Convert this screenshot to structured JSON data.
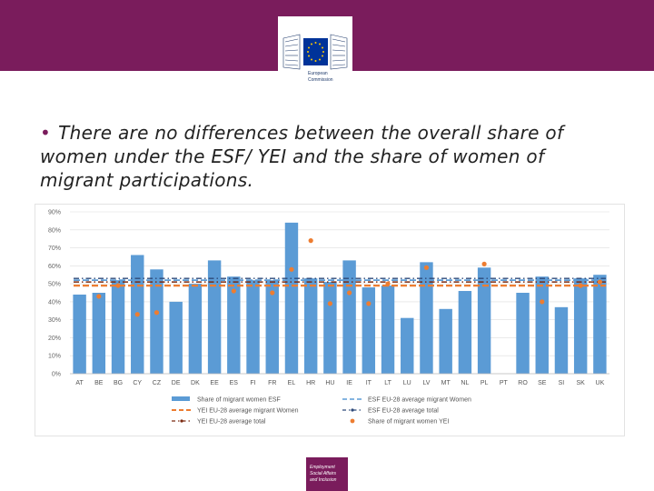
{
  "header": {
    "org_line1": "European",
    "org_line2": "Commission"
  },
  "slide": {
    "bullet": "•",
    "title": "There are no differences between the overall share of women under the ESF/ YEI and the share of women of migrant participations."
  },
  "footer": {
    "line1": "Employment",
    "line2": "Social Affairs",
    "line3": "and Inclusion"
  },
  "colors": {
    "banner": "#7a1c5c",
    "bar": "#5b9bd5",
    "orange": "#ed7d31",
    "dark_blue": "#2e4a7a",
    "dark_red": "#7b2a12"
  },
  "chart_data": {
    "type": "bar",
    "title": "",
    "xlabel": "",
    "ylabel": "",
    "ylim": [
      0,
      90
    ],
    "yticks": [
      "0%",
      "10%",
      "20%",
      "30%",
      "40%",
      "50%",
      "60%",
      "70%",
      "80%",
      "90%"
    ],
    "ytick_values": [
      0,
      10,
      20,
      30,
      40,
      50,
      60,
      70,
      80,
      90
    ],
    "categories": [
      "AT",
      "BE",
      "BG",
      "CY",
      "CZ",
      "DE",
      "DK",
      "EE",
      "ES",
      "FI",
      "FR",
      "EL",
      "HR",
      "HU",
      "IE",
      "IT",
      "LT",
      "LU",
      "LV",
      "MT",
      "NL",
      "PL",
      "PT",
      "RO",
      "SE",
      "SI",
      "SK",
      "UK"
    ],
    "series": [
      {
        "name": "Share of migrant women ESF",
        "kind": "bar",
        "values": [
          44,
          45,
          52,
          66,
          58,
          40,
          50,
          63,
          54,
          52,
          52,
          84,
          53,
          51,
          63,
          48,
          49,
          31,
          62,
          36,
          46,
          59,
          null,
          45,
          54,
          37,
          53,
          55
        ]
      },
      {
        "name": "ESF EU-28 average migrant Women",
        "kind": "dash-line",
        "value": 52
      },
      {
        "name": "YEI EU-28 average migrant Women",
        "kind": "dash-line",
        "value": 49
      },
      {
        "name": "ESF EU-28 average total",
        "kind": "dash-dot-line",
        "value": 53
      },
      {
        "name": "YEI EU-28 average total",
        "kind": "dash-dot-line",
        "value": 51
      },
      {
        "name": "Share of migrant women YEI",
        "kind": "dots",
        "values": [
          null,
          43,
          49,
          33,
          34,
          null,
          null,
          null,
          46,
          null,
          45,
          58,
          74,
          39,
          45,
          39,
          50,
          null,
          59,
          null,
          null,
          61,
          null,
          null,
          40,
          null,
          49,
          51
        ]
      }
    ],
    "legend": [
      {
        "label": "Share of migrant women ESF",
        "marker": "bar"
      },
      {
        "label": "ESF EU-28 average migrant Women",
        "marker": "blue-dash"
      },
      {
        "label": "YEI EU-28 average migrant Women",
        "marker": "orange-dash"
      },
      {
        "label": "ESF EU-28 average total",
        "marker": "blue-dot-line"
      },
      {
        "label": "YEI EU-28 average total",
        "marker": "red-dot-line"
      },
      {
        "label": "Share of migrant women YEI",
        "marker": "orange-dot"
      }
    ],
    "legend_position": "bottom"
  }
}
